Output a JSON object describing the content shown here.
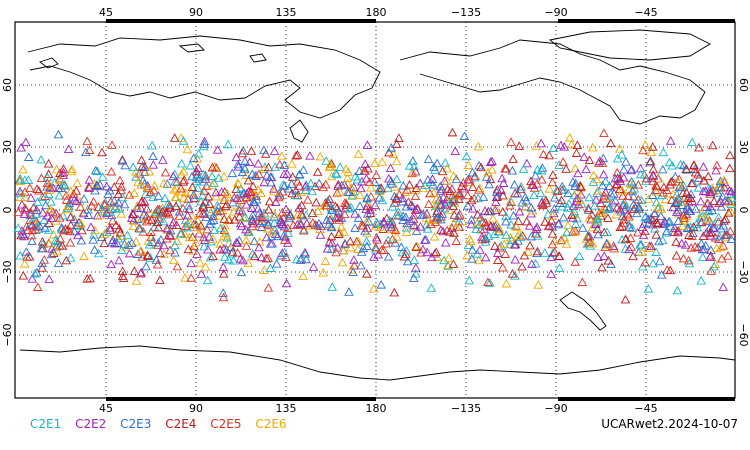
{
  "map": {
    "projection": "cylindrical equidistant",
    "center_longitude": 180,
    "lon_labels": [
      "45",
      "90",
      "135",
      "180",
      "−135",
      "−90",
      "−45"
    ],
    "lat_labels": [
      "60",
      "30",
      "0",
      "−30",
      "−60"
    ],
    "grid": true
  },
  "legend": [
    {
      "label": "C2E1",
      "color": "#12b8c8"
    },
    {
      "label": "C2E2",
      "color": "#a020c0"
    },
    {
      "label": "C2E3",
      "color": "#2a6fd6"
    },
    {
      "label": "C2E4",
      "color": "#c01818"
    },
    {
      "label": "C2E5",
      "color": "#e23020"
    },
    {
      "label": "C2E6",
      "color": "#f0a800"
    }
  ],
  "marker": "triangle-outline",
  "stamp": "UCARwet2.2024-10-07"
}
